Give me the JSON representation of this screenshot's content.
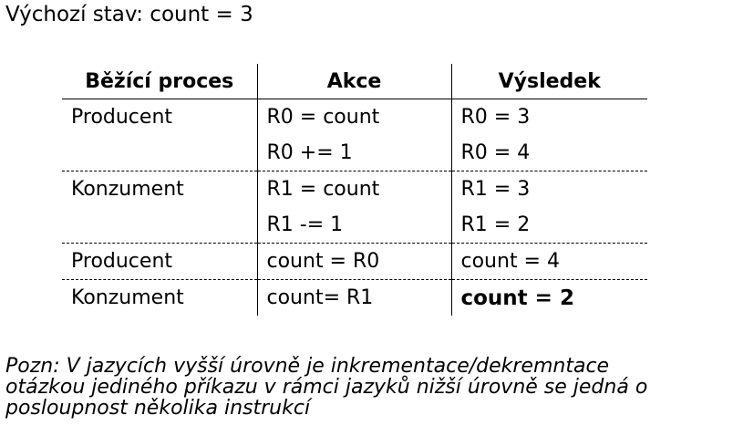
{
  "initial_state": "Výchozí stav: count = 3",
  "table": {
    "headers": [
      "Běžící proces",
      "Akce",
      "Výsledek"
    ],
    "rows": [
      {
        "process": "Producent",
        "action": "R0 = count",
        "result": "R0 = 3"
      },
      {
        "process": "",
        "action": "R0 += 1",
        "result": "R0 = 4"
      },
      {
        "process": "Konzument",
        "action": "R1 = count",
        "result": "R1 = 3"
      },
      {
        "process": "",
        "action": "R1 -= 1",
        "result": "R1 = 2"
      },
      {
        "process": "Producent",
        "action": "count = R0",
        "result": "count = 4"
      },
      {
        "process": "Konzument",
        "action": "count= R1",
        "result": "count = 2"
      }
    ]
  },
  "note": {
    "lines": [
      "Pozn: V jazycích vyšší úrovně je inkrementace/dekremntace",
      "otázkou jediného příkazu v rámci jazyků nižší úrovně se jedná o",
      "posloupnost několika instrukcí"
    ]
  }
}
